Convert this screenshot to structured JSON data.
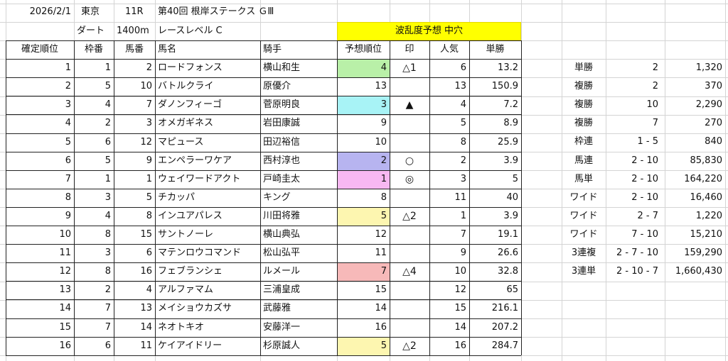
{
  "header": {
    "date": "2026/2/1",
    "venue": "東京",
    "race_no": "11R",
    "race_name": "第40回 根岸ステークス ＧⅢ",
    "surface": "ダート",
    "distance": "1400m",
    "race_level": "レースレベル C",
    "volatility": "波乱度予想 中穴"
  },
  "columns": [
    "確定順位",
    "枠番",
    "馬番",
    "馬名",
    "騎手",
    "予想順位",
    "印",
    "人気",
    "単勝"
  ],
  "rows": [
    {
      "pos": "1",
      "waku": "1",
      "uma": "2",
      "name": "ロードフォンス",
      "jockey": "横山和生",
      "pred": "4",
      "mark": "△1",
      "pop": "6",
      "odds": "13.2",
      "pred_bg": "#b9f0a8"
    },
    {
      "pos": "2",
      "waku": "5",
      "uma": "10",
      "name": "バトルクライ",
      "jockey": "原優介",
      "pred": "13",
      "mark": "",
      "pop": "13",
      "odds": "150.9",
      "pred_bg": ""
    },
    {
      "pos": "3",
      "waku": "4",
      "uma": "7",
      "name": "ダノンフィーゴ",
      "jockey": "菅原明良",
      "pred": "3",
      "mark": "▲",
      "pop": "4",
      "odds": "7.2",
      "pred_bg": "#a8f3f6"
    },
    {
      "pos": "4",
      "waku": "2",
      "uma": "3",
      "name": "オメガギネス",
      "jockey": "岩田康誠",
      "pred": "9",
      "mark": "",
      "pop": "5",
      "odds": "8.9",
      "pred_bg": ""
    },
    {
      "pos": "5",
      "waku": "6",
      "uma": "12",
      "name": "マピュース",
      "jockey": "田辺裕信",
      "pred": "10",
      "mark": "",
      "pop": "8",
      "odds": "25.9",
      "pred_bg": ""
    },
    {
      "pos": "6",
      "waku": "5",
      "uma": "9",
      "name": "エンペラーワケア",
      "jockey": "西村淳也",
      "pred": "2",
      "mark": "○",
      "pop": "2",
      "odds": "3.9",
      "pred_bg": "#b7b4f0"
    },
    {
      "pos": "7",
      "waku": "1",
      "uma": "1",
      "name": "ウェイワードアクト",
      "jockey": "戸崎圭太",
      "pred": "1",
      "mark": "◎",
      "pop": "3",
      "odds": "5",
      "pred_bg": "#f7b8f2"
    },
    {
      "pos": "8",
      "waku": "3",
      "uma": "5",
      "name": "チカッパ",
      "jockey": "キング",
      "pred": "8",
      "mark": "",
      "pop": "11",
      "odds": "40",
      "pred_bg": ""
    },
    {
      "pos": "9",
      "waku": "4",
      "uma": "8",
      "name": "インユアパレス",
      "jockey": "川田将雅",
      "pred": "5",
      "mark": "△2",
      "pop": "1",
      "odds": "3.9",
      "pred_bg": "#fdf6b0"
    },
    {
      "pos": "10",
      "waku": "8",
      "uma": "15",
      "name": "サントノーレ",
      "jockey": "横山典弘",
      "pred": "12",
      "mark": "",
      "pop": "7",
      "odds": "19.1",
      "pred_bg": ""
    },
    {
      "pos": "11",
      "waku": "3",
      "uma": "6",
      "name": "マテンロウコマンド",
      "jockey": "松山弘平",
      "pred": "11",
      "mark": "",
      "pop": "9",
      "odds": "26.6",
      "pred_bg": ""
    },
    {
      "pos": "12",
      "waku": "8",
      "uma": "16",
      "name": "フェブランシェ",
      "jockey": "ルメール",
      "pred": "7",
      "mark": "△4",
      "pop": "10",
      "odds": "32.8",
      "pred_bg": "#f7b9b9"
    },
    {
      "pos": "13",
      "waku": "2",
      "uma": "4",
      "name": "アルファマム",
      "jockey": "三浦皇成",
      "pred": "15",
      "mark": "",
      "pop": "12",
      "odds": "65",
      "pred_bg": ""
    },
    {
      "pos": "14",
      "waku": "7",
      "uma": "13",
      "name": "メイショウカズサ",
      "jockey": "武藤雅",
      "pred": "14",
      "mark": "",
      "pop": "15",
      "odds": "216.1",
      "pred_bg": ""
    },
    {
      "pos": "15",
      "waku": "7",
      "uma": "14",
      "name": "ネオトキオ",
      "jockey": "安藤洋一",
      "pred": "16",
      "mark": "",
      "pop": "14",
      "odds": "207.2",
      "pred_bg": ""
    },
    {
      "pos": "16",
      "waku": "6",
      "uma": "11",
      "name": "ケイアイドリー",
      "jockey": "杉原誠人",
      "pred": "5",
      "mark": "△2",
      "pop": "16",
      "odds": "284.7",
      "pred_bg": "#fdf6b0"
    }
  ],
  "payouts": [
    {
      "type": "単勝",
      "combo": "2",
      "amount": "1,320"
    },
    {
      "type": "複勝",
      "combo": "2",
      "amount": "370"
    },
    {
      "type": "複勝",
      "combo": "10",
      "amount": "2,290"
    },
    {
      "type": "複勝",
      "combo": "7",
      "amount": "270"
    },
    {
      "type": "枠連",
      "combo": "1 - 5",
      "amount": "840"
    },
    {
      "type": "馬連",
      "combo": "2 - 10",
      "amount": "85,830"
    },
    {
      "type": "馬単",
      "combo": "2 - 10",
      "amount": "164,220"
    },
    {
      "type": "ワイド",
      "combo": "2 - 10",
      "amount": "16,460"
    },
    {
      "type": "ワイド",
      "combo": "2 - 7",
      "amount": "1,220"
    },
    {
      "type": "ワイド",
      "combo": "7 - 10",
      "amount": "15,210"
    },
    {
      "type": "3連複",
      "combo": "2 - 7 - 10",
      "amount": "159,290"
    },
    {
      "type": "3連単",
      "combo": "2 - 10 - 7",
      "amount": "1,660,430"
    }
  ],
  "colors": {
    "volatility_band": "#ffff00",
    "gridline": "#d4d4d4",
    "border": "#222222"
  }
}
